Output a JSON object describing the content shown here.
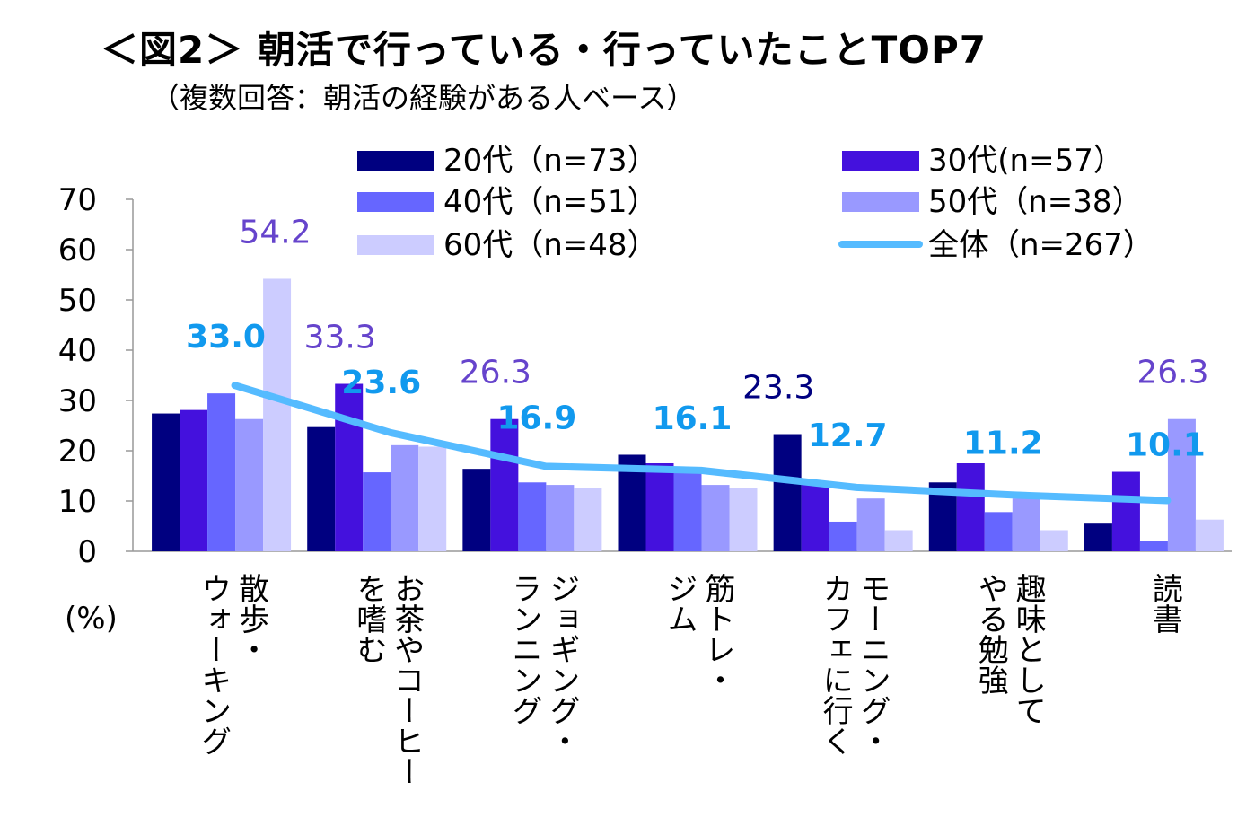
{
  "title": "＜図2＞ 朝活で行っている・行っていたことTOP7",
  "subtitle": "（複数回答：朝活の経験がある人ベース）",
  "chart_data": {
    "type": "bar",
    "ylabel": "(%)",
    "ylim": [
      0,
      70
    ],
    "yticks": [
      0,
      10,
      20,
      30,
      40,
      50,
      60,
      70
    ],
    "categories": [
      [
        "散歩・",
        "ウォーキング"
      ],
      [
        "お茶やコーヒー",
        "を嗜む"
      ],
      [
        "ジョギング・",
        "ランニング"
      ],
      [
        "筋トレ・",
        "ジム"
      ],
      [
        "モーニング・",
        "カフェに行く"
      ],
      [
        "趣味として",
        "やる勉強"
      ],
      [
        "読書"
      ]
    ],
    "series": [
      {
        "name": "20代（n=73）",
        "color": "#000080",
        "values": [
          27.4,
          24.7,
          16.4,
          19.2,
          23.3,
          13.7,
          5.5
        ]
      },
      {
        "name": "30代(n=57）",
        "color": "#4411dd",
        "values": [
          28.1,
          33.3,
          26.3,
          17.5,
          14.0,
          17.5,
          15.8
        ]
      },
      {
        "name": "40代（n=51）",
        "color": "#6666ff",
        "values": [
          31.4,
          15.7,
          13.7,
          15.7,
          5.9,
          7.8,
          2.0
        ]
      },
      {
        "name": "50代（n=38）",
        "color": "#9999ff",
        "values": [
          26.3,
          21.1,
          13.2,
          13.2,
          10.5,
          10.5,
          26.3
        ]
      },
      {
        "name": "60代（n=48）",
        "color": "#ccccff",
        "values": [
          54.2,
          20.8,
          12.5,
          12.5,
          4.2,
          4.2,
          6.3
        ]
      }
    ],
    "total": {
      "name": "全体（n=267）",
      "color": "#55bbff",
      "values": [
        33.0,
        23.6,
        16.9,
        16.1,
        12.7,
        11.2,
        10.1
      ]
    },
    "total_labels": [
      "33.0",
      "23.6",
      "16.9",
      "16.1",
      "12.7",
      "11.2",
      "10.1"
    ],
    "bar_annotations": [
      {
        "category": 0,
        "series": 4,
        "text": "54.2",
        "color": "#6644cc"
      },
      {
        "category": 1,
        "series": 1,
        "text": "33.3",
        "color": "#6644cc"
      },
      {
        "category": 2,
        "series": 1,
        "text": "26.3",
        "color": "#6644cc"
      },
      {
        "category": 4,
        "series": 0,
        "text": "23.3",
        "color": "#000080"
      },
      {
        "category": 6,
        "series": 3,
        "text": "26.3",
        "color": "#6644cc"
      }
    ],
    "legend": "top"
  }
}
